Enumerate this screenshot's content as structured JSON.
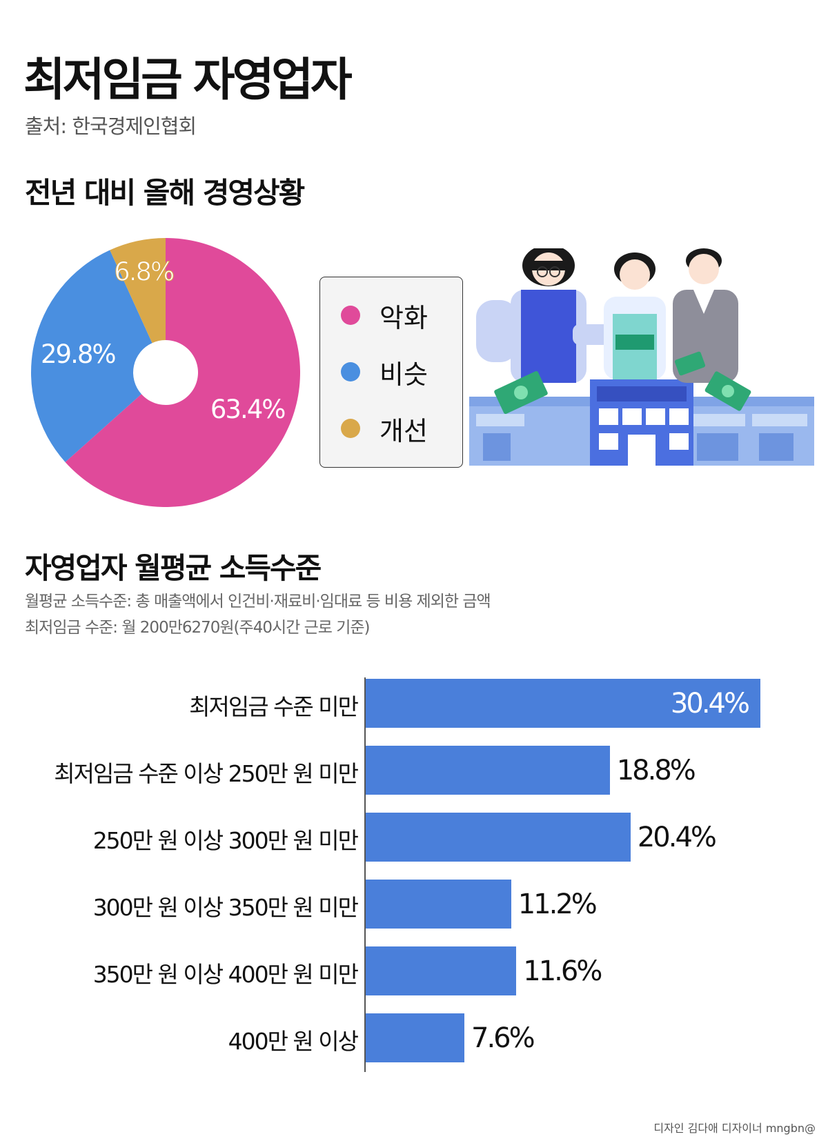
{
  "title": "최저임금 자영업자",
  "source": "출처: 한국경제인협회",
  "pie_section": {
    "title": "전년 대비 올해 경영상황"
  },
  "bar_section": {
    "title": "자영업자 월평균 소득수준",
    "notes": [
      "월평균 소득수준: 총 매출액에서 인건비·재료비·임대료 등 비용 제외한 금액",
      "최저임금 수준: 월 200만6270원(주40시간 근로 기준)"
    ]
  },
  "credit": "디자인 김다애 디자이너 mngbn@",
  "chart_data": [
    {
      "type": "pie",
      "donut": true,
      "categories": [
        "악화",
        "비슷",
        "개선"
      ],
      "values": [
        63.4,
        29.8,
        6.8
      ],
      "labels": [
        "63.4%",
        "29.8%",
        "6.8%"
      ],
      "colors": [
        "#e04a9a",
        "#4a8fe0",
        "#d9a84a"
      ],
      "legend": "right"
    },
    {
      "type": "bar",
      "orientation": "horizontal",
      "categories": [
        "최저임금 수준 미만",
        "최저임금 수준 이상 250만 원 미만",
        "250만 원 이상 300만 원 미만",
        "300만 원 이상 350만 원 미만",
        "350만 원 이상 400만 원 미만",
        "400만 원 이상"
      ],
      "values": [
        30.4,
        18.8,
        20.4,
        11.2,
        11.6,
        7.6
      ],
      "labels": [
        "30.4%",
        "18.8%",
        "20.4%",
        "11.2%",
        "11.6%",
        "7.6%"
      ],
      "color": "#4a7fda",
      "xlim": [
        0,
        30.4
      ]
    }
  ]
}
